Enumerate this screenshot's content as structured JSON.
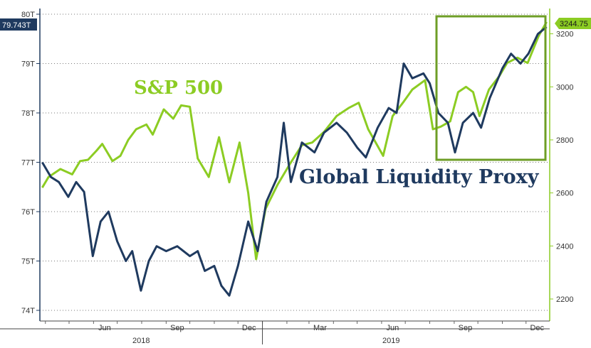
{
  "colors": {
    "sp500": "#8ccc23",
    "liquidity": "#1f3a5f",
    "grid": "#7a7a7a",
    "highlight_box": "#6e9e26",
    "badge_left_bg": "#1f3a5f",
    "badge_right_bg": "#8ccc23"
  },
  "chart_data": {
    "type": "line",
    "x_axis": {
      "month_ticks": [
        "Jun",
        "Sep",
        "Dec",
        "Mar",
        "Jun",
        "Sep",
        "Dec"
      ],
      "years": [
        "2018",
        "2019"
      ]
    },
    "left_axis": {
      "ticks": [
        "74T",
        "75T",
        "76T",
        "77T",
        "78T",
        "79T",
        "80T"
      ],
      "ylim": [
        74,
        80
      ],
      "last_value_label": "79.743T"
    },
    "right_axis": {
      "ticks": [
        "2200",
        "2400",
        "2600",
        "2800",
        "3000",
        "3200"
      ],
      "ylim": [
        2200,
        3200
      ],
      "last_value_label": "3244.75"
    },
    "grid": "horizontal dotted",
    "highlight": "box around Aug 2019 – Dec 2019",
    "series": [
      {
        "name": "S&P 500",
        "axis": "right",
        "points": [
          [
            "2018-03-28",
            2620
          ],
          [
            "2018-04-05",
            2660
          ],
          [
            "2018-04-20",
            2690
          ],
          [
            "2018-05-05",
            2670
          ],
          [
            "2018-05-15",
            2720
          ],
          [
            "2018-05-25",
            2725
          ],
          [
            "2018-06-05",
            2760
          ],
          [
            "2018-06-12",
            2785
          ],
          [
            "2018-06-25",
            2720
          ],
          [
            "2018-07-05",
            2740
          ],
          [
            "2018-07-15",
            2800
          ],
          [
            "2018-07-25",
            2840
          ],
          [
            "2018-08-07",
            2858
          ],
          [
            "2018-08-15",
            2820
          ],
          [
            "2018-08-29",
            2915
          ],
          [
            "2018-09-10",
            2880
          ],
          [
            "2018-09-20",
            2930
          ],
          [
            "2018-10-01",
            2925
          ],
          [
            "2018-10-11",
            2730
          ],
          [
            "2018-10-25",
            2660
          ],
          [
            "2018-11-07",
            2810
          ],
          [
            "2018-11-20",
            2640
          ],
          [
            "2018-12-03",
            2790
          ],
          [
            "2018-12-14",
            2600
          ],
          [
            "2018-12-24",
            2350
          ],
          [
            "2019-01-05",
            2540
          ],
          [
            "2019-01-20",
            2630
          ],
          [
            "2019-02-05",
            2710
          ],
          [
            "2019-02-20",
            2780
          ],
          [
            "2019-03-05",
            2790
          ],
          [
            "2019-03-20",
            2830
          ],
          [
            "2019-04-05",
            2890
          ],
          [
            "2019-04-20",
            2920
          ],
          [
            "2019-05-03",
            2940
          ],
          [
            "2019-05-15",
            2840
          ],
          [
            "2019-06-03",
            2740
          ],
          [
            "2019-06-15",
            2890
          ],
          [
            "2019-06-28",
            2940
          ],
          [
            "2019-07-10",
            2990
          ],
          [
            "2019-07-26",
            3025
          ],
          [
            "2019-08-05",
            2840
          ],
          [
            "2019-08-15",
            2850
          ],
          [
            "2019-08-27",
            2870
          ],
          [
            "2019-09-06",
            2980
          ],
          [
            "2019-09-16",
            3000
          ],
          [
            "2019-09-25",
            2980
          ],
          [
            "2019-10-03",
            2890
          ],
          [
            "2019-10-15",
            2990
          ],
          [
            "2019-10-28",
            3040
          ],
          [
            "2019-11-07",
            3090
          ],
          [
            "2019-11-20",
            3110
          ],
          [
            "2019-12-03",
            3090
          ],
          [
            "2019-12-17",
            3192
          ],
          [
            "2019-12-27",
            3244.75
          ]
        ]
      },
      {
        "name": "Global Liquidity Proxy",
        "axis": "left",
        "points": [
          [
            "2018-03-28",
            77.0
          ],
          [
            "2018-04-08",
            76.7
          ],
          [
            "2018-04-18",
            76.6
          ],
          [
            "2018-04-30",
            76.3
          ],
          [
            "2018-05-10",
            76.6
          ],
          [
            "2018-05-20",
            76.4
          ],
          [
            "2018-05-31",
            75.1
          ],
          [
            "2018-06-10",
            75.8
          ],
          [
            "2018-06-20",
            76.0
          ],
          [
            "2018-07-01",
            75.4
          ],
          [
            "2018-07-12",
            75.0
          ],
          [
            "2018-07-20",
            75.2
          ],
          [
            "2018-07-31",
            74.4
          ],
          [
            "2018-08-10",
            75.0
          ],
          [
            "2018-08-20",
            75.3
          ],
          [
            "2018-09-01",
            75.2
          ],
          [
            "2018-09-15",
            75.3
          ],
          [
            "2018-10-01",
            75.1
          ],
          [
            "2018-10-11",
            75.2
          ],
          [
            "2018-10-20",
            74.8
          ],
          [
            "2018-11-01",
            74.9
          ],
          [
            "2018-11-10",
            74.5
          ],
          [
            "2018-11-20",
            74.3
          ],
          [
            "2018-12-01",
            74.9
          ],
          [
            "2018-12-14",
            75.8
          ],
          [
            "2018-12-26",
            75.2
          ],
          [
            "2019-01-06",
            76.2
          ],
          [
            "2019-01-20",
            76.7
          ],
          [
            "2019-01-28",
            77.8
          ],
          [
            "2019-02-06",
            76.6
          ],
          [
            "2019-02-20",
            77.4
          ],
          [
            "2019-03-08",
            77.2
          ],
          [
            "2019-03-20",
            77.6
          ],
          [
            "2019-04-05",
            77.8
          ],
          [
            "2019-04-18",
            77.6
          ],
          [
            "2019-05-01",
            77.3
          ],
          [
            "2019-05-12",
            77.1
          ],
          [
            "2019-05-27",
            77.7
          ],
          [
            "2019-06-10",
            78.1
          ],
          [
            "2019-06-20",
            78.0
          ],
          [
            "2019-06-29",
            79.0
          ],
          [
            "2019-07-10",
            78.7
          ],
          [
            "2019-07-24",
            78.8
          ],
          [
            "2019-08-01",
            78.6
          ],
          [
            "2019-08-12",
            78.0
          ],
          [
            "2019-08-24",
            77.8
          ],
          [
            "2019-09-02",
            77.2
          ],
          [
            "2019-09-12",
            77.8
          ],
          [
            "2019-09-25",
            78.0
          ],
          [
            "2019-10-05",
            77.7
          ],
          [
            "2019-10-16",
            78.3
          ],
          [
            "2019-11-01",
            78.9
          ],
          [
            "2019-11-12",
            79.2
          ],
          [
            "2019-11-24",
            79.0
          ],
          [
            "2019-12-04",
            79.2
          ],
          [
            "2019-12-16",
            79.6
          ],
          [
            "2019-12-27",
            79.743
          ]
        ]
      }
    ],
    "annotations": [
      "S&P 500",
      "Global Liquidity Proxy"
    ]
  }
}
